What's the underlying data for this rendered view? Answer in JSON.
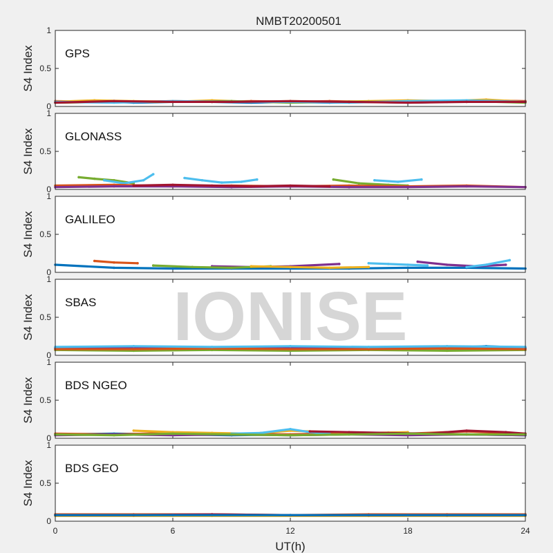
{
  "figure": {
    "title": "NMBT20200501",
    "watermark": "IONISE"
  },
  "chart_data": {
    "type": "scatter",
    "x_label": "UT(h)",
    "y_label": "S4 Index",
    "xlim": [
      0,
      24
    ],
    "ylim": [
      0,
      1
    ],
    "x_ticks": [
      0,
      6,
      12,
      18,
      24
    ],
    "y_ticks": [
      0,
      0.5,
      1
    ],
    "x_tick_labels": [
      "0",
      "6",
      "12",
      "18",
      "24"
    ],
    "y_tick_labels": [
      "0",
      "0.5",
      "1"
    ],
    "colors": [
      "#0072BD",
      "#D95319",
      "#EDB120",
      "#7E2F8E",
      "#77AC30",
      "#4DBEEE",
      "#A2142F"
    ],
    "panels": [
      {
        "label": "GPS",
        "series": [
          {
            "color": "#0072BD",
            "x": [
              0,
              2,
              4,
              6,
              8,
              10,
              12,
              14,
              16,
              18,
              20,
              22,
              24
            ],
            "y": [
              0.06,
              0.07,
              0.05,
              0.06,
              0.06,
              0.05,
              0.06,
              0.05,
              0.06,
              0.05,
              0.06,
              0.07,
              0.06
            ]
          },
          {
            "color": "#D95319",
            "x": [
              0,
              2,
              4,
              6,
              8,
              10,
              12,
              14,
              16,
              18,
              20,
              22,
              24
            ],
            "y": [
              0.07,
              0.06,
              0.06,
              0.07,
              0.06,
              0.07,
              0.06,
              0.07,
              0.06,
              0.06,
              0.07,
              0.08,
              0.07
            ]
          },
          {
            "color": "#EDB120",
            "x": [
              0,
              2,
              4,
              6,
              8,
              10,
              12,
              14,
              16,
              18,
              20,
              22,
              24
            ],
            "y": [
              0.06,
              0.08,
              0.07,
              0.06,
              0.08,
              0.06,
              0.07,
              0.06,
              0.07,
              0.08,
              0.07,
              0.09,
              0.06
            ]
          },
          {
            "color": "#77AC30",
            "x": [
              0,
              3,
              6,
              9,
              12,
              15,
              18,
              21,
              24
            ],
            "y": [
              0.05,
              0.06,
              0.06,
              0.07,
              0.05,
              0.06,
              0.06,
              0.07,
              0.05
            ]
          },
          {
            "color": "#4DBEEE",
            "x": [
              0,
              3,
              6,
              9,
              12,
              15,
              18,
              21,
              24
            ],
            "y": [
              0.06,
              0.05,
              0.07,
              0.06,
              0.06,
              0.05,
              0.07,
              0.08,
              0.06
            ]
          },
          {
            "color": "#A2142F",
            "x": [
              0,
              3,
              6,
              9,
              12,
              15,
              18,
              21,
              24
            ],
            "y": [
              0.05,
              0.07,
              0.06,
              0.06,
              0.07,
              0.06,
              0.05,
              0.06,
              0.06
            ]
          }
        ]
      },
      {
        "label": "GLONASS",
        "series": [
          {
            "color": "#77AC30",
            "x": [
              1.2,
              2,
              3,
              4
            ],
            "y": [
              0.16,
              0.14,
              0.12,
              0.08
            ]
          },
          {
            "color": "#4DBEEE",
            "x": [
              2.5,
              3.5,
              4.5,
              5
            ],
            "y": [
              0.12,
              0.08,
              0.12,
              0.2
            ]
          },
          {
            "color": "#4DBEEE",
            "x": [
              6.6,
              7.5,
              8.5,
              9.5,
              10.3
            ],
            "y": [
              0.15,
              0.12,
              0.09,
              0.1,
              0.13
            ]
          },
          {
            "color": "#77AC30",
            "x": [
              14.2,
              15.5,
              17,
              18
            ],
            "y": [
              0.13,
              0.08,
              0.06,
              0.05
            ]
          },
          {
            "color": "#4DBEEE",
            "x": [
              16.3,
              17.5,
              18.7
            ],
            "y": [
              0.12,
              0.1,
              0.13
            ]
          },
          {
            "color": "#D95319",
            "x": [
              0,
              3,
              6,
              9,
              12,
              15,
              18,
              21,
              24
            ],
            "y": [
              0.05,
              0.06,
              0.04,
              0.05,
              0.04,
              0.05,
              0.04,
              0.05,
              0.03
            ]
          },
          {
            "color": "#7E2F8E",
            "x": [
              0,
              3,
              6,
              9,
              12,
              15,
              18,
              21,
              24
            ],
            "y": [
              0.03,
              0.04,
              0.04,
              0.03,
              0.04,
              0.03,
              0.03,
              0.04,
              0.03
            ]
          },
          {
            "color": "#A2142F",
            "x": [
              4,
              6,
              8,
              10,
              12,
              14
            ],
            "y": [
              0.05,
              0.06,
              0.05,
              0.04,
              0.05,
              0.04
            ]
          }
        ]
      },
      {
        "label": "GALILEO",
        "series": [
          {
            "color": "#0072BD",
            "x": [
              0,
              3,
              6,
              9,
              12,
              15,
              18,
              21,
              24
            ],
            "y": [
              0.1,
              0.06,
              0.05,
              0.05,
              0.05,
              0.05,
              0.06,
              0.06,
              0.05
            ]
          },
          {
            "color": "#D95319",
            "x": [
              2,
              3,
              4.2
            ],
            "y": [
              0.15,
              0.13,
              0.12
            ]
          },
          {
            "color": "#7E2F8E",
            "x": [
              8,
              10,
              12,
              14.5
            ],
            "y": [
              0.08,
              0.07,
              0.08,
              0.11
            ]
          },
          {
            "color": "#4DBEEE",
            "x": [
              16,
              17,
              18,
              19
            ],
            "y": [
              0.12,
              0.11,
              0.1,
              0.09
            ]
          },
          {
            "color": "#7E2F8E",
            "x": [
              18.5,
              20,
              21.5,
              23
            ],
            "y": [
              0.14,
              0.1,
              0.08,
              0.1
            ]
          },
          {
            "color": "#4DBEEE",
            "x": [
              21,
              22,
              23.2
            ],
            "y": [
              0.07,
              0.1,
              0.16
            ]
          },
          {
            "color": "#77AC30",
            "x": [
              5,
              7,
              9,
              11
            ],
            "y": [
              0.09,
              0.07,
              0.06,
              0.08
            ]
          },
          {
            "color": "#EDB120",
            "x": [
              10,
              12,
              14,
              16
            ],
            "y": [
              0.08,
              0.07,
              0.06,
              0.07
            ]
          }
        ]
      },
      {
        "label": "SBAS",
        "series": [
          {
            "color": "#0072BD",
            "x": [
              0,
              2,
              4,
              6,
              8,
              10,
              12,
              14,
              16,
              18,
              20,
              22,
              24
            ],
            "y": [
              0.1,
              0.11,
              0.1,
              0.11,
              0.1,
              0.11,
              0.1,
              0.11,
              0.1,
              0.11,
              0.1,
              0.12,
              0.1
            ]
          },
          {
            "color": "#77AC30",
            "x": [
              0,
              4,
              8,
              12,
              16,
              20,
              24
            ],
            "y": [
              0.07,
              0.06,
              0.07,
              0.06,
              0.07,
              0.06,
              0.07
            ]
          },
          {
            "color": "#7E2F8E",
            "x": [
              0,
              4,
              8,
              12,
              16,
              20,
              24
            ],
            "y": [
              0.09,
              0.09,
              0.1,
              0.09,
              0.1,
              0.09,
              0.09
            ]
          },
          {
            "color": "#D95319",
            "x": [
              0,
              4,
              8,
              12,
              16,
              20,
              24
            ],
            "y": [
              0.08,
              0.08,
              0.09,
              0.08,
              0.08,
              0.09,
              0.08
            ]
          },
          {
            "color": "#4DBEEE",
            "x": [
              0,
              4,
              8,
              12,
              16,
              20,
              24
            ],
            "y": [
              0.11,
              0.12,
              0.11,
              0.12,
              0.11,
              0.12,
              0.11
            ]
          }
        ]
      },
      {
        "label": "BDS NGEO",
        "series": [
          {
            "color": "#0072BD",
            "x": [
              0,
              3,
              6,
              9,
              12,
              15,
              18,
              21,
              24
            ],
            "y": [
              0.05,
              0.06,
              0.05,
              0.04,
              0.05,
              0.06,
              0.05,
              0.05,
              0.04
            ]
          },
          {
            "color": "#D95319",
            "x": [
              0,
              3,
              6,
              9,
              12,
              15,
              18,
              21,
              24
            ],
            "y": [
              0.06,
              0.05,
              0.07,
              0.06,
              0.05,
              0.07,
              0.06,
              0.09,
              0.06
            ]
          },
          {
            "color": "#EDB120",
            "x": [
              4,
              6,
              8,
              10,
              12,
              14,
              16,
              18
            ],
            "y": [
              0.1,
              0.08,
              0.07,
              0.06,
              0.1,
              0.08,
              0.07,
              0.08
            ]
          },
          {
            "color": "#7E2F8E",
            "x": [
              0,
              3,
              6,
              9,
              12,
              15,
              18,
              21,
              24
            ],
            "y": [
              0.04,
              0.05,
              0.04,
              0.05,
              0.04,
              0.05,
              0.04,
              0.05,
              0.04
            ]
          },
          {
            "color": "#4DBEEE",
            "x": [
              9,
              10.5,
              12,
              13,
              14
            ],
            "y": [
              0.06,
              0.07,
              0.12,
              0.08,
              0.06
            ]
          },
          {
            "color": "#A2142F",
            "x": [
              13,
              15,
              17,
              19,
              21,
              23,
              24
            ],
            "y": [
              0.09,
              0.08,
              0.07,
              0.06,
              0.1,
              0.08,
              0.06
            ]
          },
          {
            "color": "#77AC30",
            "x": [
              0,
              3,
              6,
              9,
              12,
              15,
              18,
              21,
              24
            ],
            "y": [
              0.05,
              0.04,
              0.06,
              0.05,
              0.04,
              0.05,
              0.06,
              0.05,
              0.05
            ]
          }
        ]
      },
      {
        "label": "BDS GEO",
        "series": [
          {
            "color": "#D95319",
            "x": [
              0,
              4,
              8,
              12,
              16,
              20,
              24
            ],
            "y": [
              0.09,
              0.09,
              0.09,
              0.08,
              0.09,
              0.09,
              0.09
            ]
          },
          {
            "color": "#EDB120",
            "x": [
              0,
              4,
              8,
              12,
              16,
              20,
              24
            ],
            "y": [
              0.07,
              0.07,
              0.07,
              0.07,
              0.07,
              0.07,
              0.07
            ]
          },
          {
            "color": "#A2142F",
            "x": [
              0,
              4,
              8,
              12,
              16,
              20,
              24
            ],
            "y": [
              0.08,
              0.08,
              0.09,
              0.08,
              0.08,
              0.08,
              0.08
            ]
          },
          {
            "color": "#0072BD",
            "x": [
              0,
              6,
              12,
              18,
              24
            ],
            "y": [
              0.08,
              0.08,
              0.08,
              0.08,
              0.08
            ]
          }
        ]
      }
    ]
  }
}
